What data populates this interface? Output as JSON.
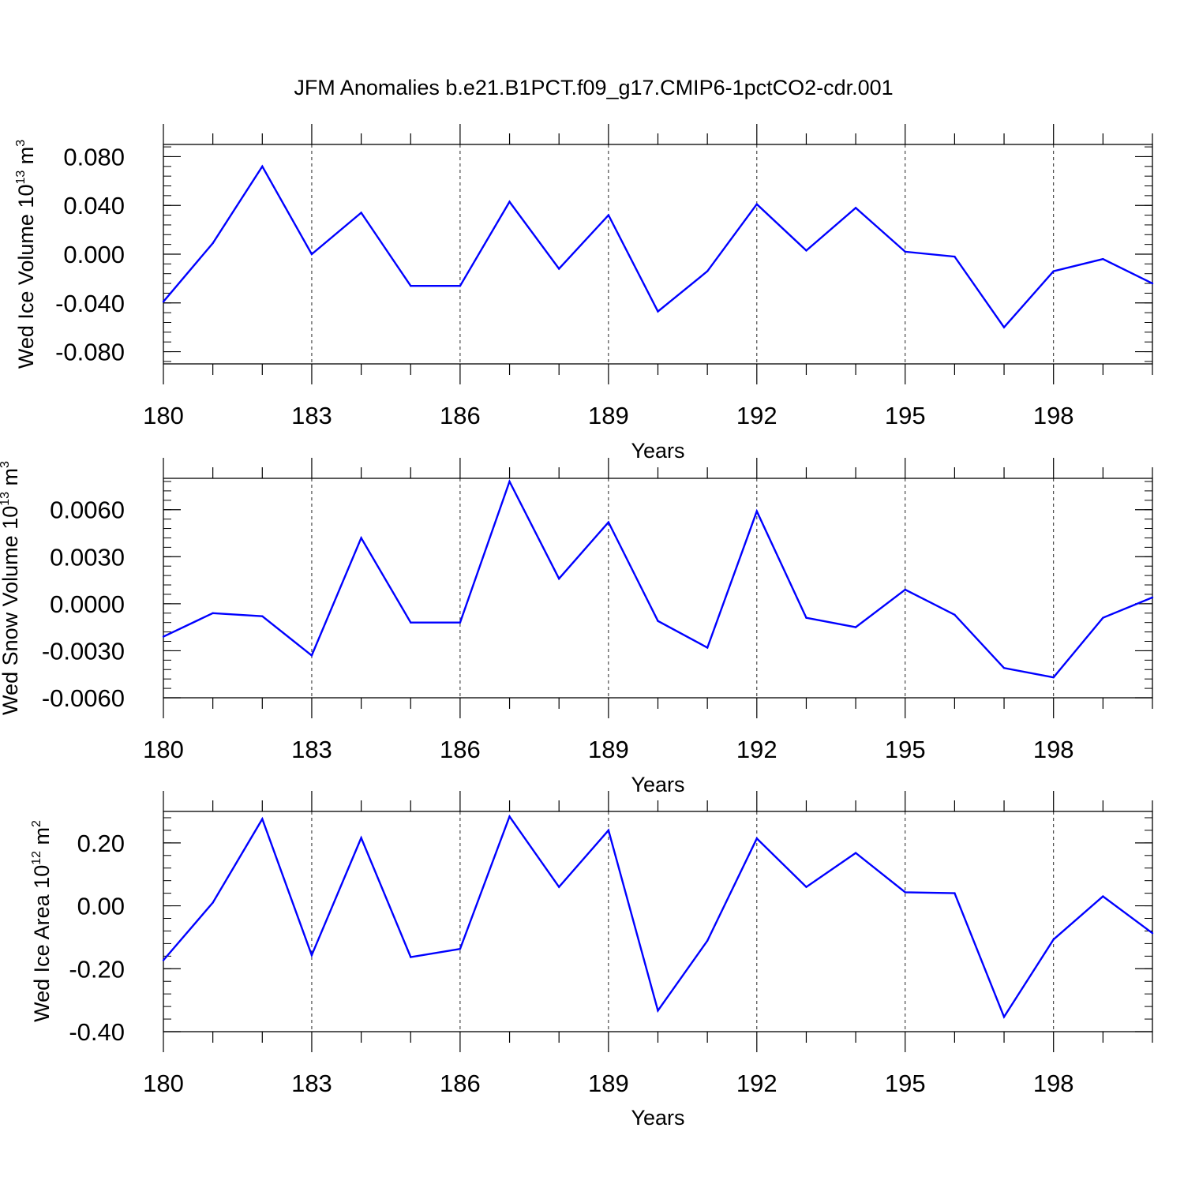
{
  "title": "JFM Anomalies b.e21.B1PCT.f09_g17.CMIP6-1pctCO2-cdr.001",
  "colors": {
    "line": "#0000ff",
    "axis": "#000000",
    "grid": "#000000"
  },
  "chart_data": [
    {
      "type": "line",
      "xlabel": "Years",
      "ylabel": {
        "prefix": "Wed Ice Volume 10",
        "exponent": "13",
        "unit": " m",
        "unit_exponent": "3"
      },
      "xlim": [
        180,
        200
      ],
      "ylim": [
        -0.09,
        0.09
      ],
      "x_ticks": [
        180,
        183,
        186,
        189,
        192,
        195,
        198
      ],
      "x_tick_labels": [
        "180",
        "183",
        "186",
        "189",
        "192",
        "195",
        "198"
      ],
      "y_ticks": [
        0.08,
        0.04,
        0.0,
        -0.04,
        -0.08
      ],
      "y_tick_labels": [
        "0.080",
        "0.040",
        "0.000",
        "-0.040",
        "-0.080"
      ],
      "y_minor_step": 0.008,
      "grid": "vertical dashed at major x ticks",
      "x": [
        180,
        181,
        182,
        183,
        184,
        185,
        186,
        187,
        188,
        189,
        190,
        191,
        192,
        193,
        194,
        195,
        196,
        197,
        198,
        199,
        200
      ],
      "values": [
        -0.039,
        0.009,
        0.072,
        0.0,
        0.034,
        -0.026,
        -0.026,
        0.043,
        -0.012,
        0.032,
        -0.047,
        -0.014,
        0.041,
        0.003,
        0.038,
        0.002,
        -0.002,
        -0.06,
        -0.014,
        -0.004,
        -0.024
      ]
    },
    {
      "type": "line",
      "xlabel": "Years",
      "ylabel": {
        "prefix": "Wed Snow Volume 10",
        "exponent": "13",
        "unit": " m",
        "unit_exponent": "3"
      },
      "xlim": [
        180,
        200
      ],
      "ylim": [
        -0.006,
        0.008
      ],
      "x_ticks": [
        180,
        183,
        186,
        189,
        192,
        195,
        198
      ],
      "x_tick_labels": [
        "180",
        "183",
        "186",
        "189",
        "192",
        "195",
        "198"
      ],
      "y_ticks": [
        0.006,
        0.003,
        0.0,
        -0.003,
        -0.006
      ],
      "y_tick_labels": [
        "0.0060",
        "0.0030",
        "0.0000",
        "-0.0030",
        "-0.0060"
      ],
      "y_minor_step": 0.0006,
      "grid": "vertical dashed at major x ticks",
      "x": [
        180,
        181,
        182,
        183,
        184,
        185,
        186,
        187,
        188,
        189,
        190,
        191,
        192,
        193,
        194,
        195,
        196,
        197,
        198,
        199,
        200
      ],
      "values": [
        -0.0021,
        -0.0006,
        -0.0008,
        -0.0033,
        0.0042,
        -0.0012,
        -0.0012,
        0.0078,
        0.0016,
        0.0052,
        -0.0011,
        -0.0028,
        0.0059,
        -0.0009,
        -0.0015,
        0.0009,
        -0.0007,
        -0.0041,
        -0.0047,
        -0.0009,
        0.0004
      ]
    },
    {
      "type": "line",
      "xlabel": "Years",
      "ylabel": {
        "prefix": "Wed Ice Area 10",
        "exponent": "12",
        "unit": " m",
        "unit_exponent": "2"
      },
      "xlim": [
        180,
        200
      ],
      "ylim": [
        -0.4,
        0.3
      ],
      "x_ticks": [
        180,
        183,
        186,
        189,
        192,
        195,
        198
      ],
      "x_tick_labels": [
        "180",
        "183",
        "186",
        "189",
        "192",
        "195",
        "198"
      ],
      "y_ticks": [
        0.2,
        0.0,
        -0.2,
        -0.4
      ],
      "y_tick_labels": [
        "0.20",
        "0.00",
        "-0.20",
        "-0.40"
      ],
      "y_minor_step": 0.04,
      "grid": "vertical dashed at major x ticks",
      "x": [
        180,
        181,
        182,
        183,
        184,
        185,
        186,
        187,
        188,
        189,
        190,
        191,
        192,
        193,
        194,
        195,
        196,
        197,
        198,
        199,
        200
      ],
      "values": [
        -0.173,
        0.01,
        0.276,
        -0.157,
        0.216,
        -0.163,
        -0.137,
        0.284,
        0.06,
        0.24,
        -0.333,
        -0.111,
        0.214,
        0.06,
        0.168,
        0.043,
        0.04,
        -0.353,
        -0.107,
        0.03,
        -0.087
      ]
    }
  ]
}
